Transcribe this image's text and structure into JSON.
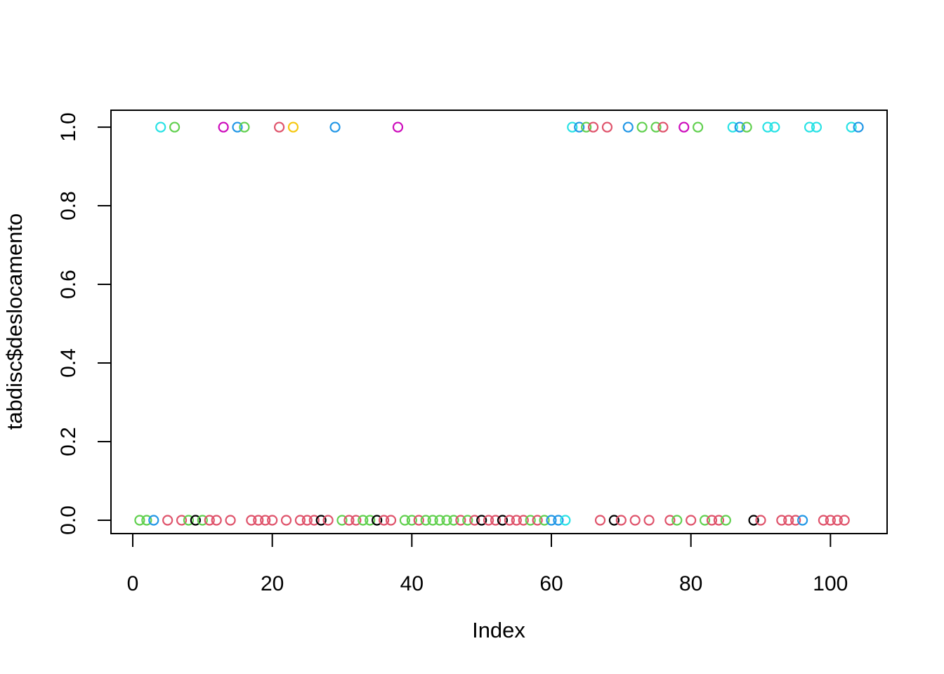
{
  "figure": {
    "background": "#ffffff",
    "frame_color": "#000000"
  },
  "chart_data": {
    "type": "scatter",
    "title": "",
    "xlabel": "Index",
    "ylabel": "tabdisc$deslocamento",
    "x_ticks": [
      0,
      20,
      40,
      60,
      80,
      100
    ],
    "y_ticks": [
      "0.0",
      "0.2",
      "0.4",
      "0.6",
      "0.8",
      "1.0"
    ],
    "y_tick_values": [
      0,
      0.2,
      0.4,
      0.6,
      0.8,
      1.0
    ],
    "xlim": [
      -3.12,
      108.12
    ],
    "ylim": [
      -0.034,
      1.043
    ],
    "grid": "off",
    "legend": "none",
    "marker": "open-circle",
    "palette": {
      "k": "#000000",
      "r": "#DF536B",
      "g": "#61D04F",
      "b": "#2297E6",
      "c": "#28E2E5",
      "m": "#CD0BBC",
      "y": "#F5C710"
    },
    "points": [
      [
        1,
        0,
        "g"
      ],
      [
        2,
        0,
        "g"
      ],
      [
        3,
        0,
        "b"
      ],
      [
        4,
        1,
        "c"
      ],
      [
        5,
        0,
        "r"
      ],
      [
        6,
        1,
        "g"
      ],
      [
        7,
        0,
        "r"
      ],
      [
        8,
        0,
        "g"
      ],
      [
        9,
        0,
        "k"
      ],
      [
        10,
        0,
        "g"
      ],
      [
        11,
        0,
        "r"
      ],
      [
        12,
        0,
        "r"
      ],
      [
        13,
        1,
        "m"
      ],
      [
        14,
        0,
        "r"
      ],
      [
        15,
        1,
        "b"
      ],
      [
        16,
        1,
        "g"
      ],
      [
        17,
        0,
        "r"
      ],
      [
        18,
        0,
        "r"
      ],
      [
        19,
        0,
        "r"
      ],
      [
        20,
        0,
        "r"
      ],
      [
        21,
        1,
        "r"
      ],
      [
        22,
        0,
        "r"
      ],
      [
        23,
        1,
        "y"
      ],
      [
        24,
        0,
        "r"
      ],
      [
        25,
        0,
        "r"
      ],
      [
        26,
        0,
        "r"
      ],
      [
        27,
        0,
        "k"
      ],
      [
        28,
        0,
        "r"
      ],
      [
        29,
        1,
        "b"
      ],
      [
        30,
        0,
        "g"
      ],
      [
        31,
        0,
        "r"
      ],
      [
        32,
        0,
        "r"
      ],
      [
        33,
        0,
        "g"
      ],
      [
        34,
        0,
        "g"
      ],
      [
        35,
        0,
        "k"
      ],
      [
        36,
        0,
        "r"
      ],
      [
        37,
        0,
        "r"
      ],
      [
        38,
        1,
        "m"
      ],
      [
        39,
        0,
        "g"
      ],
      [
        40,
        0,
        "g"
      ],
      [
        41,
        0,
        "r"
      ],
      [
        42,
        0,
        "g"
      ],
      [
        43,
        0,
        "g"
      ],
      [
        44,
        0,
        "g"
      ],
      [
        45,
        0,
        "g"
      ],
      [
        46,
        0,
        "g"
      ],
      [
        47,
        0,
        "r"
      ],
      [
        48,
        0,
        "g"
      ],
      [
        49,
        0,
        "r"
      ],
      [
        50,
        0,
        "k"
      ],
      [
        51,
        0,
        "r"
      ],
      [
        52,
        0,
        "r"
      ],
      [
        53,
        0,
        "k"
      ],
      [
        54,
        0,
        "r"
      ],
      [
        55,
        0,
        "r"
      ],
      [
        56,
        0,
        "r"
      ],
      [
        57,
        0,
        "g"
      ],
      [
        58,
        0,
        "r"
      ],
      [
        59,
        0,
        "g"
      ],
      [
        60,
        0,
        "b"
      ],
      [
        61,
        0,
        "b"
      ],
      [
        62,
        0,
        "c"
      ],
      [
        63,
        1,
        "c"
      ],
      [
        64,
        1,
        "b"
      ],
      [
        65,
        1,
        "g"
      ],
      [
        66,
        1,
        "r"
      ],
      [
        67,
        0,
        "r"
      ],
      [
        68,
        1,
        "r"
      ],
      [
        69,
        0,
        "k"
      ],
      [
        70,
        0,
        "r"
      ],
      [
        71,
        1,
        "b"
      ],
      [
        72,
        0,
        "r"
      ],
      [
        73,
        1,
        "g"
      ],
      [
        74,
        0,
        "r"
      ],
      [
        75,
        1,
        "g"
      ],
      [
        76,
        1,
        "r"
      ],
      [
        77,
        0,
        "r"
      ],
      [
        78,
        0,
        "g"
      ],
      [
        79,
        1,
        "m"
      ],
      [
        80,
        0,
        "r"
      ],
      [
        81,
        1,
        "g"
      ],
      [
        82,
        0,
        "g"
      ],
      [
        83,
        0,
        "r"
      ],
      [
        84,
        0,
        "r"
      ],
      [
        85,
        0,
        "g"
      ],
      [
        86,
        1,
        "c"
      ],
      [
        87,
        1,
        "b"
      ],
      [
        88,
        1,
        "g"
      ],
      [
        89,
        0,
        "k"
      ],
      [
        90,
        0,
        "r"
      ],
      [
        91,
        1,
        "c"
      ],
      [
        92,
        1,
        "c"
      ],
      [
        93,
        0,
        "r"
      ],
      [
        94,
        0,
        "r"
      ],
      [
        95,
        0,
        "r"
      ],
      [
        96,
        0,
        "b"
      ],
      [
        97,
        1,
        "c"
      ],
      [
        98,
        1,
        "c"
      ],
      [
        99,
        0,
        "r"
      ],
      [
        100,
        0,
        "r"
      ],
      [
        101,
        0,
        "r"
      ],
      [
        102,
        0,
        "r"
      ],
      [
        103,
        1,
        "c"
      ],
      [
        104,
        1,
        "b"
      ]
    ]
  }
}
